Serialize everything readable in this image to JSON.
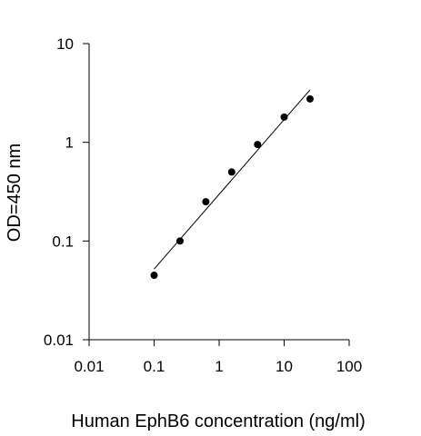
{
  "chart_data": {
    "type": "scatter",
    "title": "",
    "xlabel": "Human EphB6 concentration (ng/ml)",
    "ylabel": "OD=450 nm",
    "x_scale": "log",
    "y_scale": "log",
    "xlim": [
      0.01,
      100
    ],
    "ylim": [
      0.01,
      10
    ],
    "grid": false,
    "legend": "none",
    "x_ticks": [
      0.01,
      0.1,
      1,
      10,
      100
    ],
    "x_tick_labels": [
      "0.01",
      "0.1",
      "1",
      "10",
      "100"
    ],
    "y_ticks": [
      0.01,
      0.1,
      1,
      10
    ],
    "y_tick_labels": [
      "0.01",
      "0.1",
      "1",
      "10"
    ],
    "points": [
      {
        "x": 0.1,
        "y": 0.045
      },
      {
        "x": 0.25,
        "y": 0.1
      },
      {
        "x": 0.625,
        "y": 0.25
      },
      {
        "x": 1.56,
        "y": 0.5
      },
      {
        "x": 3.9,
        "y": 0.95
      },
      {
        "x": 10,
        "y": 1.8
      },
      {
        "x": 25,
        "y": 2.75
      }
    ],
    "fit_line": {
      "x": [
        0.1,
        25
      ],
      "y": [
        0.052,
        3.4
      ]
    },
    "marker_color": "#000000",
    "line_color": "#000000"
  }
}
